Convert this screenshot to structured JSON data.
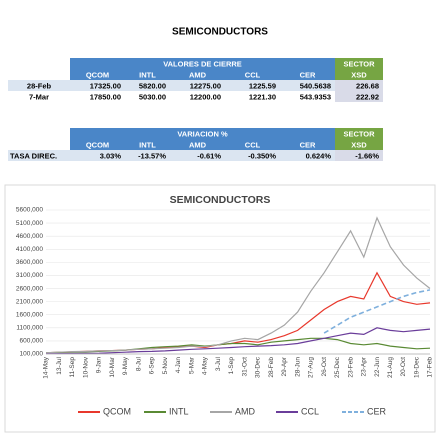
{
  "header": {
    "title": "SEMICONDUCTORS"
  },
  "table1": {
    "group_header": "VALORES DE CIERRE",
    "sector_header": "SECTOR",
    "columns": [
      "QCOM",
      "INTL",
      "AMD",
      "CCL",
      "CER",
      "XSD"
    ],
    "rows": [
      {
        "label": "28-Feb",
        "cells": [
          "17325.00",
          "5820.00",
          "12275.00",
          "1225.59",
          "540.5638",
          "226.68"
        ]
      },
      {
        "label": "7-Mar",
        "cells": [
          "17850.00",
          "5030.00",
          "12200.00",
          "1221.30",
          "543.9353",
          "222.92"
        ]
      }
    ]
  },
  "table2": {
    "group_header": "VARIACION %",
    "sector_header": "SECTOR",
    "columns": [
      "QCOM",
      "INTL",
      "AMD",
      "CCL",
      "CER",
      "XSD"
    ],
    "rows": [
      {
        "label": "TASA DIREC.",
        "cells": [
          "3.03%",
          "-13.57%",
          "-0.61%",
          "-0.350%",
          "0.624%",
          "-1.66%"
        ]
      }
    ]
  },
  "chart_data": {
    "type": "line",
    "title": "SEMICONDUCTORS",
    "categories": [
      "14-May",
      "13-Jul",
      "11-Sep",
      "10-Nov",
      "9-Jan",
      "10-Mar",
      "9-May",
      "8-Jul",
      "6-Sep",
      "5-Nov",
      "4-Jan",
      "5-Mar",
      "4-May",
      "3-Jul",
      "1-Sep",
      "31-Oct",
      "30-Dec",
      "28-Feb",
      "29-Apr",
      "28-Jun",
      "27-Aug",
      "26-Oct",
      "25-Dec",
      "23-Feb",
      "23-Apr",
      "22-Jun",
      "21-Aug",
      "20-Oct",
      "19-Dec",
      "17-Feb"
    ],
    "ylim": [
      100000,
      5600000
    ],
    "yticks": [
      {
        "value": 100000,
        "label": "100,000"
      },
      {
        "value": 600000,
        "label": "600,000"
      },
      {
        "value": 1100000,
        "label": "1100,000"
      },
      {
        "value": 1600000,
        "label": "1600,000"
      },
      {
        "value": 2100000,
        "label": "2100,000"
      },
      {
        "value": 2600000,
        "label": "2600,000"
      },
      {
        "value": 3100000,
        "label": "3100,000"
      },
      {
        "value": 3600000,
        "label": "3600,000"
      },
      {
        "value": 4100000,
        "label": "4100,000"
      },
      {
        "value": 4600000,
        "label": "4600,000"
      },
      {
        "value": 5100000,
        "label": "5100,000"
      },
      {
        "value": 5600000,
        "label": "5600,000"
      }
    ],
    "series": [
      {
        "name": "QCOM",
        "color": "#e8382c",
        "values": [
          150000,
          160000,
          180000,
          200000,
          220000,
          230000,
          250000,
          280000,
          300000,
          350000,
          380000,
          400000,
          350000,
          450000,
          500000,
          600000,
          550000,
          650000,
          800000,
          1000000,
          1400000,
          1800000,
          2100000,
          2300000,
          2200000,
          3200000,
          2300000,
          2100000,
          2000000,
          2050000
        ]
      },
      {
        "name": "INTL",
        "color": "#5a8a34",
        "values": [
          150000,
          160000,
          170000,
          180000,
          200000,
          220000,
          250000,
          300000,
          350000,
          380000,
          400000,
          450000,
          400000,
          450000,
          500000,
          500000,
          450000,
          550000,
          600000,
          650000,
          700000,
          700000,
          650000,
          500000,
          450000,
          500000,
          400000,
          350000,
          300000,
          320000
        ]
      },
      {
        "name": "AMD",
        "color": "#a6a6a6",
        "values": [
          150000,
          170000,
          190000,
          200000,
          220000,
          230000,
          250000,
          280000,
          300000,
          320000,
          350000,
          400000,
          380000,
          450000,
          600000,
          700000,
          650000,
          900000,
          1200000,
          1700000,
          2500000,
          3200000,
          4000000,
          4800000,
          3800000,
          5300000,
          4200000,
          3500000,
          3000000,
          2600000
        ]
      },
      {
        "name": "CCL",
        "color": "#6a3d9a",
        "values": [
          110000,
          115000,
          120000,
          125000,
          130000,
          150000,
          170000,
          190000,
          200000,
          220000,
          250000,
          280000,
          300000,
          320000,
          350000,
          380000,
          400000,
          420000,
          450000,
          500000,
          600000,
          700000,
          800000,
          900000,
          850000,
          1100000,
          1000000,
          950000,
          1000000,
          1050000
        ]
      },
      {
        "name": "CER",
        "color": "#7fb0dd",
        "dashed": true,
        "values": [
          null,
          null,
          null,
          null,
          null,
          null,
          null,
          null,
          null,
          null,
          null,
          null,
          null,
          null,
          null,
          null,
          null,
          null,
          null,
          null,
          null,
          900000,
          1200000,
          1500000,
          1700000,
          1900000,
          2100000,
          2300000,
          2450000,
          2550000
        ]
      }
    ]
  }
}
